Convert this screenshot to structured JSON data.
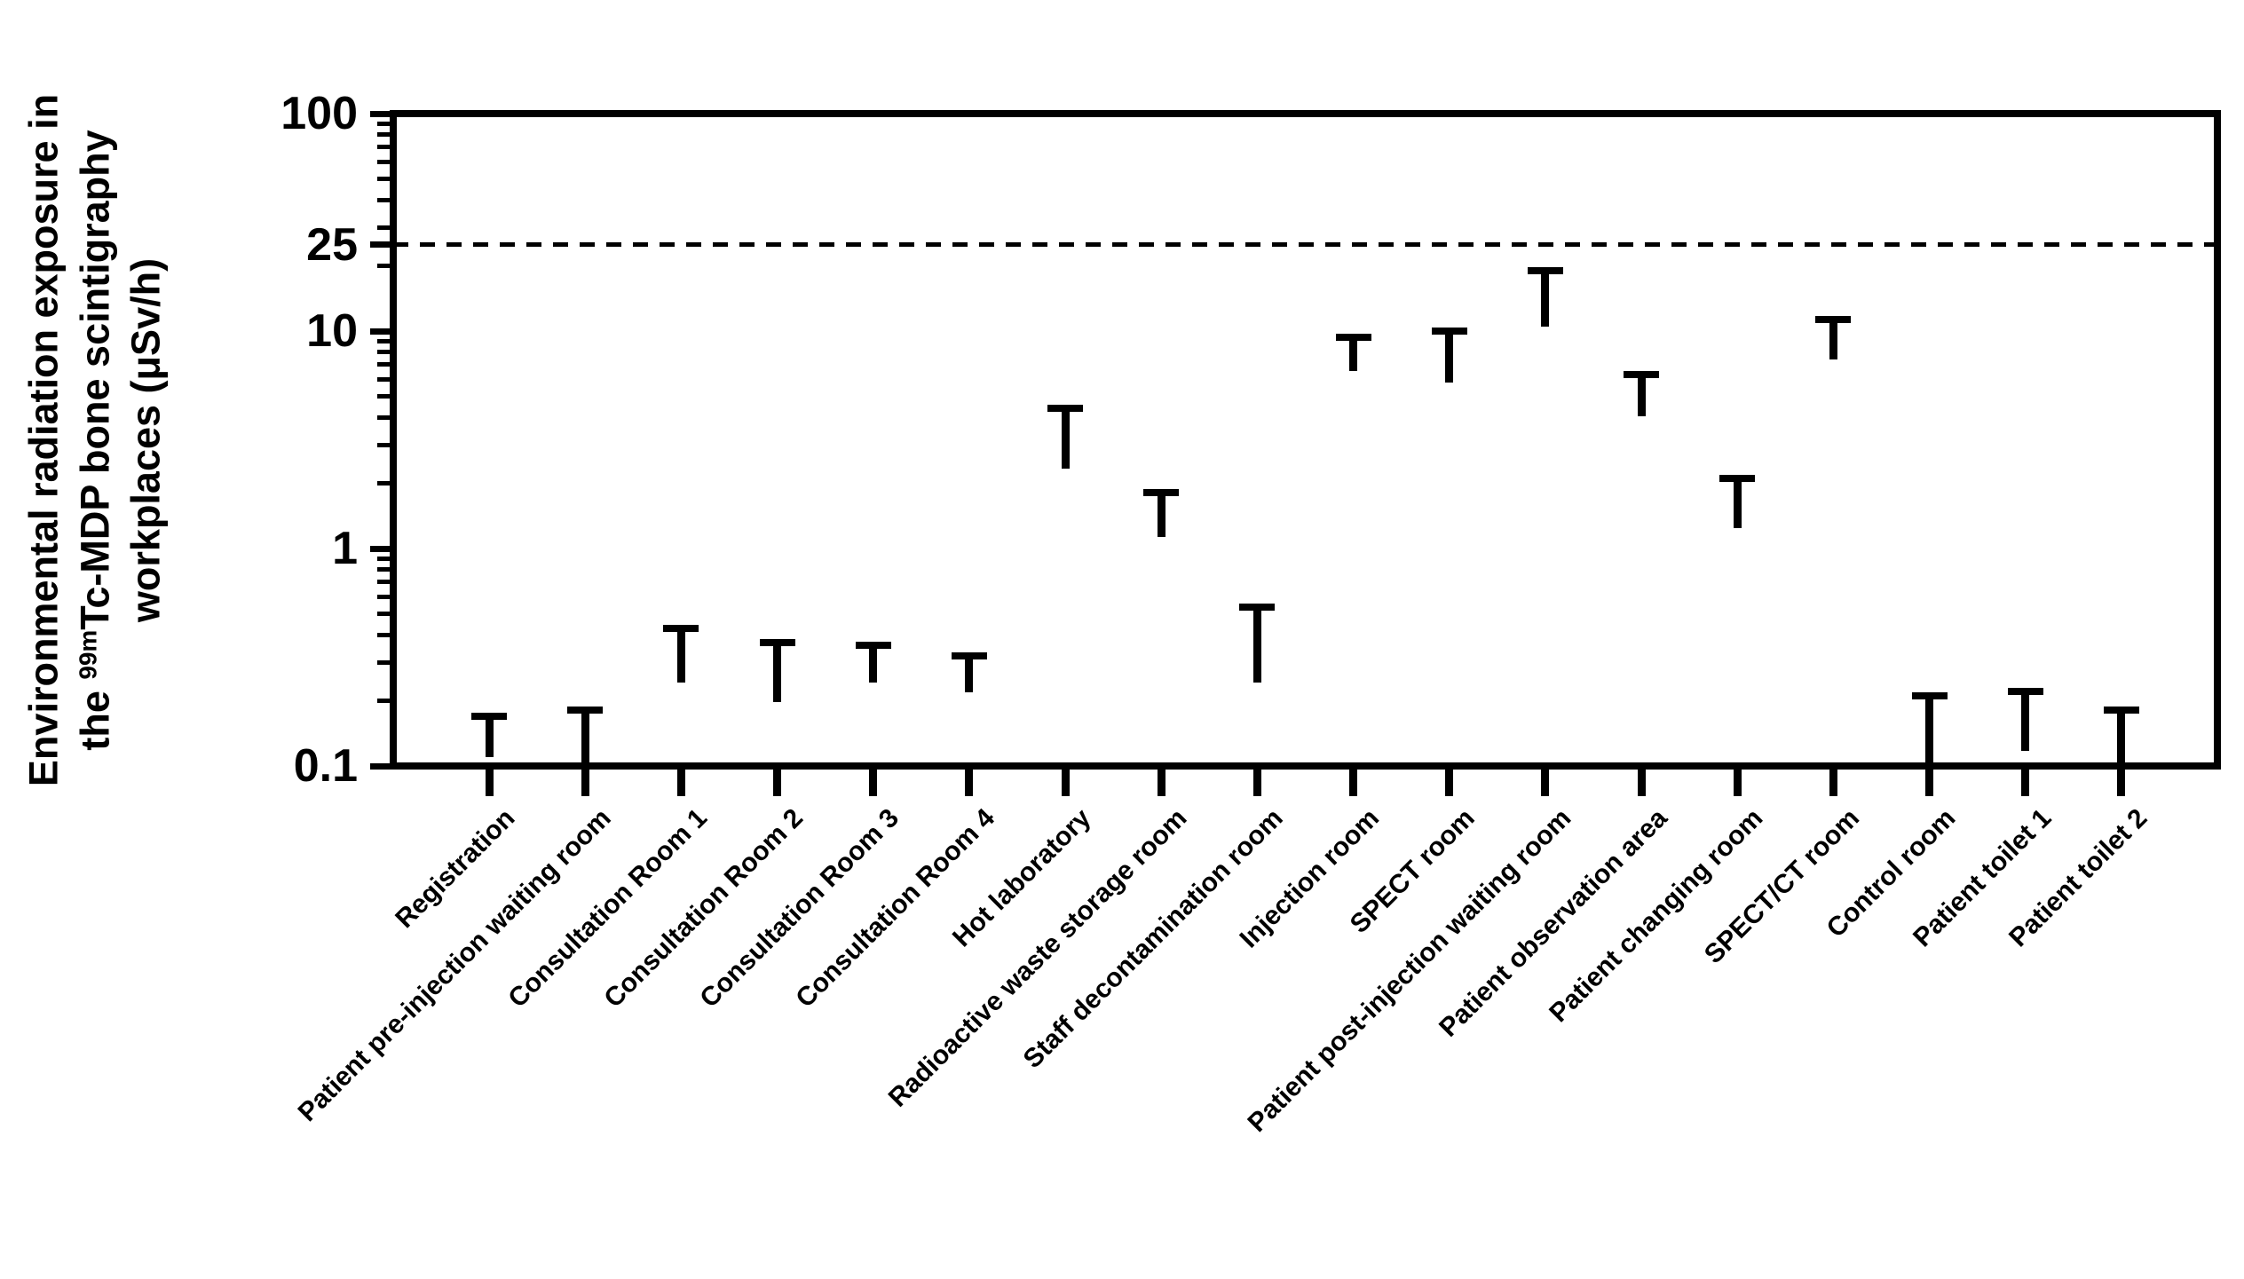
{
  "chart_data": {
    "type": "bar",
    "title": "",
    "ylabel_full": "Environmental radiation exposure in the 99mTc-MDP bone scintigraphy workplaces (μSv/h)",
    "ylabel_line1": "Environmental radiation exposure in",
    "ylabel_line2_pre": "the ",
    "ylabel_line2_sup": "99m",
    "ylabel_line2_post": "Tc-MDP bone scintigraphy",
    "ylabel_line3": "workplaces (μSv/h)",
    "xlabel": "",
    "yscale": "log",
    "ylim": [
      0.1,
      100
    ],
    "ytick_labels": [
      "100",
      "25",
      "10",
      "1",
      "0.1"
    ],
    "ytick_values": [
      100,
      25,
      10,
      1,
      0.1
    ],
    "yminor_tick_values": [
      90,
      80,
      70,
      60,
      50,
      40,
      30,
      20,
      9,
      8,
      7,
      6,
      5,
      4,
      3,
      2,
      0.9,
      0.8,
      0.7,
      0.6,
      0.5,
      0.4,
      0.3,
      0.2
    ],
    "reference_line_value": 25,
    "grid": false,
    "legend": null,
    "bar_color": "#000000",
    "background_color": "#ffffff",
    "categories": [
      "Registration",
      "Patient pre-injection waiting room",
      "Consultation Room 1",
      "Consultation Room 2",
      "Consultation Room 3",
      "Consultation Room 4",
      "Hot laboratory",
      "Radioactive waste storage room",
      "Staff decontamination room",
      "Injection room",
      "SPECT room",
      "Patient post-injection waiting room",
      "Patient observation area",
      "Patient changing room",
      "SPECT/CT room",
      "Control room",
      "Patient toilet 1",
      "Patient toilet 2"
    ],
    "values": [
      0.145,
      0.125,
      0.32,
      0.26,
      0.32,
      0.29,
      3.1,
      1.5,
      0.32,
      8.7,
      7.7,
      13.9,
      5.4,
      1.65,
      9.8,
      0.135,
      0.155,
      0.125
    ],
    "error_upper_values": [
      0.17,
      0.18,
      0.43,
      0.37,
      0.36,
      0.32,
      4.4,
      1.8,
      0.54,
      9.4,
      10.0,
      19.0,
      6.3,
      2.1,
      11.3,
      0.21,
      0.22,
      0.18
    ],
    "units": "μSv/h"
  }
}
